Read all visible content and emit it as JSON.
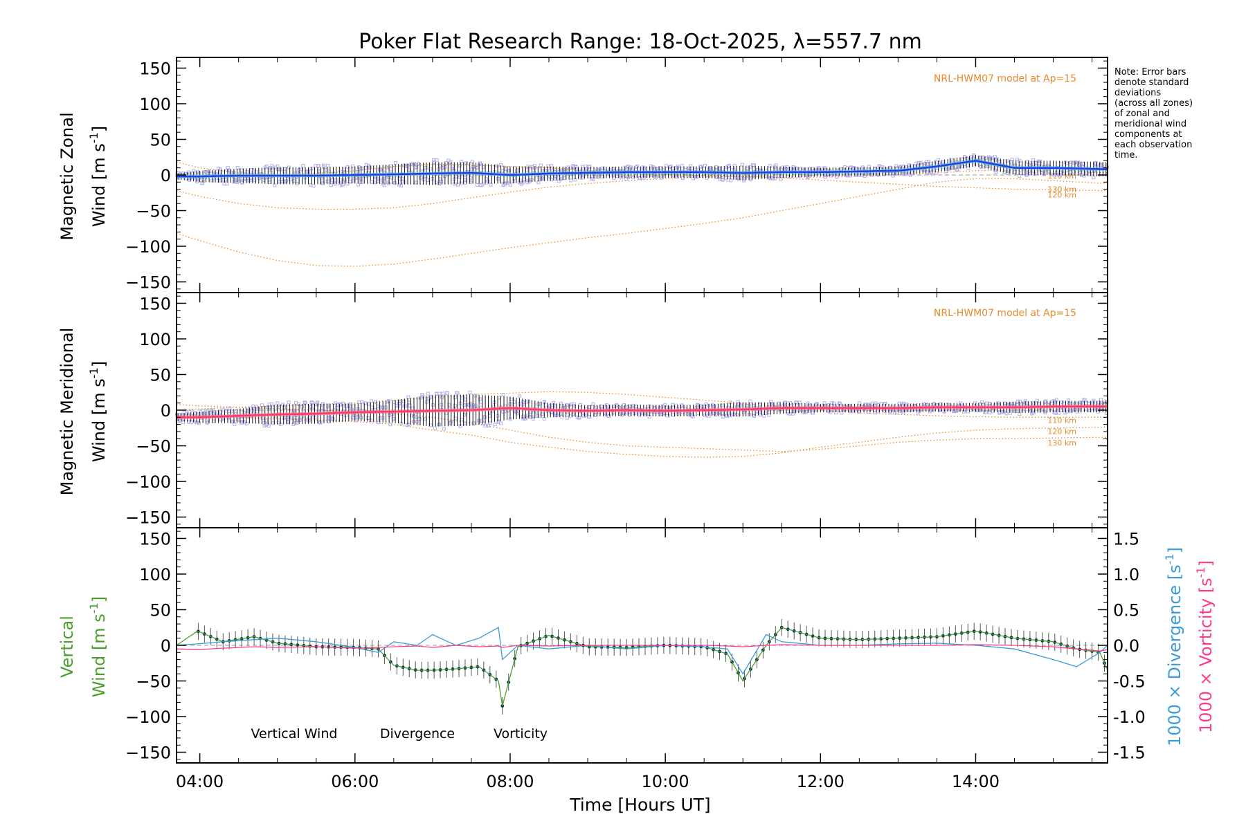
{
  "title": "Poker Flat Research Range: 18-Oct-2025, λ=557.7 nm",
  "note": [
    "Note: Error bars",
    "denote standard",
    "deviations",
    "(across all zones)",
    "of zonal and",
    "meridional wind",
    "components at",
    "each observation",
    "time."
  ],
  "colors": {
    "zonal": "#2040e0",
    "meridional": "#ff3a66",
    "vertical": "#4aa02c",
    "divergence": "#3b9bd8",
    "vorticity": "#ff3a8c",
    "model": "#e8892b",
    "scatter": "#b3b0e8"
  },
  "chart_data": [
    {
      "type": "line",
      "panel": "zonal",
      "ylabel_line1": "Magnetic Zonal",
      "ylabel_line2": "Wind",
      "ylabel_unit": "[m s",
      "ylabel_exp": "-1",
      "ylabel_close": "]",
      "model_label": "NRL-HWM07 model at Ap=15",
      "ylim": [
        -165,
        165
      ],
      "yticks": [
        150,
        100,
        50,
        0,
        -50,
        -100,
        -150
      ],
      "x": [
        3.7,
        4.0,
        4.5,
        5.0,
        5.5,
        6.0,
        6.5,
        7.0,
        7.5,
        8.0,
        8.5,
        9.0,
        9.5,
        10.0,
        10.5,
        11.0,
        11.5,
        12.0,
        12.5,
        13.0,
        13.5,
        14.0,
        14.5,
        15.0,
        15.7
      ],
      "values": [
        -2,
        -2,
        -1,
        -1,
        -1,
        0,
        1,
        2,
        3,
        0,
        2,
        3,
        4,
        4,
        4,
        3,
        4,
        4,
        5,
        6,
        12,
        20,
        10,
        10,
        8
      ],
      "errors": [
        4,
        8,
        10,
        12,
        12,
        12,
        14,
        16,
        15,
        12,
        10,
        8,
        8,
        8,
        8,
        10,
        8,
        6,
        6,
        6,
        8,
        8,
        10,
        10,
        10
      ],
      "model": [
        {
          "label": "110 km",
          "values": [
            18,
            10,
            3,
            0,
            2,
            6,
            12,
            15,
            14,
            12,
            10,
            6,
            3,
            1,
            -1,
            -2,
            -3,
            -3,
            -2,
            0,
            3,
            6,
            7,
            5,
            3
          ]
        },
        {
          "label": "120 km",
          "values": [
            -22,
            -30,
            -40,
            -46,
            -48,
            -48,
            -46,
            -40,
            -32,
            -24,
            -17,
            -12,
            -8,
            -5,
            -3,
            -2,
            -4,
            -7,
            -10,
            -13,
            -16,
            -18,
            -20,
            -21,
            -22
          ]
        },
        {
          "label": "130 km",
          "values": [
            -82,
            -92,
            -108,
            -120,
            -127,
            -128,
            -125,
            -118,
            -110,
            -102,
            -95,
            -88,
            -82,
            -75,
            -68,
            -60,
            -50,
            -40,
            -30,
            -20,
            -10,
            -5,
            -5,
            -8,
            -12
          ]
        }
      ]
    },
    {
      "type": "line",
      "panel": "meridional",
      "ylabel_line1": "Magnetic Meridional",
      "ylabel_line2": "Wind",
      "ylabel_unit": "[m s",
      "ylabel_exp": "-1",
      "ylabel_close": "]",
      "model_label": "NRL-HWM07 model at Ap=15",
      "ylim": [
        -165,
        165
      ],
      "yticks": [
        150,
        100,
        50,
        0,
        -50,
        -100,
        -150
      ],
      "x": [
        3.7,
        4.0,
        4.5,
        5.0,
        5.5,
        6.0,
        6.5,
        7.0,
        7.5,
        8.0,
        8.5,
        9.0,
        9.5,
        10.0,
        10.5,
        11.0,
        11.5,
        12.0,
        12.5,
        13.0,
        13.5,
        14.0,
        14.5,
        15.0,
        15.7
      ],
      "values": [
        -10,
        -10,
        -8,
        -6,
        -5,
        -3,
        -2,
        -1,
        0,
        3,
        0,
        -1,
        0,
        -1,
        0,
        1,
        3,
        3,
        3,
        3,
        4,
        4,
        4,
        5,
        5
      ],
      "errors": [
        5,
        8,
        10,
        14,
        14,
        12,
        16,
        22,
        22,
        16,
        10,
        8,
        8,
        8,
        8,
        10,
        8,
        6,
        6,
        6,
        6,
        6,
        8,
        8,
        8
      ],
      "model": [
        {
          "label": "110 km",
          "values": [
            0,
            2,
            4,
            6,
            8,
            10,
            14,
            18,
            22,
            24,
            26,
            25,
            22,
            18,
            14,
            10,
            5,
            0,
            -4,
            -6,
            -8,
            -9,
            -10,
            -10,
            -10
          ]
        },
        {
          "label": "120 km",
          "values": [
            -5,
            -8,
            -10,
            -12,
            -14,
            -16,
            -20,
            -28,
            -35,
            -45,
            -52,
            -58,
            -62,
            -65,
            -66,
            -65,
            -60,
            -52,
            -45,
            -38,
            -32,
            -28,
            -26,
            -25,
            -24
          ]
        },
        {
          "label": "130 km",
          "values": [
            8,
            6,
            4,
            2,
            0,
            -2,
            -5,
            -10,
            -18,
            -28,
            -38,
            -45,
            -50,
            -52,
            -54,
            -56,
            -58,
            -55,
            -50,
            -45,
            -42,
            -40,
            -40,
            -39,
            -38
          ]
        }
      ]
    },
    {
      "type": "line",
      "panel": "vertical",
      "ylabel_line1": "Vertical",
      "ylabel_line2": "Wind",
      "ylabel_unit": "[m s",
      "ylabel_exp": "-1",
      "ylabel_close": "]",
      "ylim": [
        -165,
        165
      ],
      "yticks": [
        150,
        100,
        50,
        0,
        -50,
        -100,
        -150
      ],
      "y2lim": [
        -1.65,
        1.65
      ],
      "y2ticks": [
        "1.5",
        "1.0",
        "0.5",
        "0.0",
        "-0.5",
        "-1.0",
        "-1.5"
      ],
      "y2_divergence_label": "1000 × Divergence [s",
      "y2_vorticity_label": "1000 × Vorticity [s",
      "y2_exp": "-1",
      "y2_close": "]",
      "legend": [
        "Vertical Wind",
        "Divergence",
        "Vorticity"
      ],
      "x": [
        3.7,
        3.97,
        4.3,
        4.7,
        5.0,
        5.5,
        6.0,
        6.3,
        6.5,
        6.8,
        7.0,
        7.3,
        7.6,
        7.85,
        7.9,
        8.1,
        8.5,
        9.0,
        9.5,
        10.0,
        10.5,
        10.8,
        11.0,
        11.3,
        11.5,
        12.0,
        12.5,
        13.0,
        13.5,
        14.0,
        14.5,
        15.0,
        15.3,
        15.6,
        15.7
      ],
      "vertical": [
        0,
        20,
        5,
        12,
        3,
        -2,
        -3,
        -5,
        -28,
        -35,
        -35,
        -33,
        -30,
        -50,
        -85,
        -2,
        14,
        -2,
        -3,
        0,
        -2,
        -12,
        -50,
        0,
        25,
        10,
        8,
        10,
        12,
        20,
        10,
        5,
        -5,
        -10,
        -35
      ],
      "divergence": [
        0.0,
        0.02,
        0.05,
        0.08,
        0.1,
        0.05,
        -0.03,
        -0.1,
        0.05,
        0.0,
        0.15,
        0.0,
        0.1,
        0.25,
        -0.2,
        0.0,
        -0.05,
        0.0,
        -0.05,
        0.0,
        -0.02,
        -0.05,
        -0.4,
        0.15,
        0.05,
        0.0,
        0.0,
        0.02,
        0.03,
        0.0,
        -0.05,
        -0.2,
        -0.3,
        -0.1,
        0.0
      ],
      "vorticity": [
        -0.05,
        -0.06,
        -0.04,
        -0.02,
        -0.03,
        -0.02,
        -0.04,
        -0.03,
        -0.02,
        -0.01,
        -0.03,
        0.0,
        -0.02,
        -0.01,
        -0.03,
        0.0,
        -0.01,
        0.0,
        0.0,
        0.0,
        0.0,
        -0.01,
        -0.02,
        0.0,
        0.01,
        0.0,
        0.0,
        0.0,
        0.0,
        0.01,
        0.0,
        -0.02,
        -0.05,
        -0.08,
        -0.06
      ]
    }
  ],
  "xaxis": {
    "label": "Time [Hours UT]",
    "xlim": [
      3.7,
      15.7
    ],
    "ticks": [
      {
        "v": 4,
        "label": "04:00"
      },
      {
        "v": 6,
        "label": "06:00"
      },
      {
        "v": 8,
        "label": "08:00"
      },
      {
        "v": 10,
        "label": "10:00"
      },
      {
        "v": 12,
        "label": "12:00"
      },
      {
        "v": 14,
        "label": "14:00"
      }
    ]
  }
}
